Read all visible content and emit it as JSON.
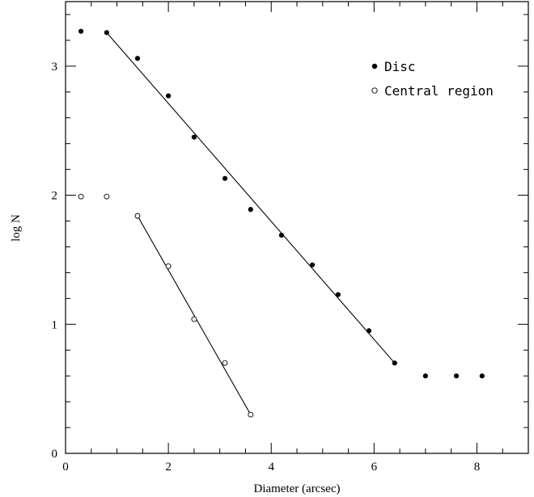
{
  "chart_data": {
    "type": "scatter",
    "xlabel": "Diameter (arcsec)",
    "ylabel": "log N",
    "xlim": [
      0,
      9
    ],
    "ylim": [
      0,
      3.5
    ],
    "grid": false,
    "legend_position": "top-right",
    "x_ticks": [
      0,
      2,
      4,
      6,
      8
    ],
    "y_ticks": [
      0,
      1,
      2,
      3
    ],
    "series": [
      {
        "name": "Disc",
        "marker": "filled-circle",
        "color": "#000000",
        "points": [
          {
            "x": 0.3,
            "y": 3.27
          },
          {
            "x": 0.8,
            "y": 3.26
          },
          {
            "x": 1.4,
            "y": 3.06
          },
          {
            "x": 2.0,
            "y": 2.77
          },
          {
            "x": 2.5,
            "y": 2.45
          },
          {
            "x": 3.1,
            "y": 2.13
          },
          {
            "x": 3.6,
            "y": 1.89
          },
          {
            "x": 4.2,
            "y": 1.69
          },
          {
            "x": 4.8,
            "y": 1.46
          },
          {
            "x": 5.3,
            "y": 1.23
          },
          {
            "x": 5.9,
            "y": 0.95
          },
          {
            "x": 6.4,
            "y": 0.7
          },
          {
            "x": 7.0,
            "y": 0.6
          },
          {
            "x": 7.6,
            "y": 0.6
          },
          {
            "x": 8.1,
            "y": 0.6
          }
        ],
        "fit_line": {
          "x": [
            0.8,
            6.4
          ],
          "y": [
            3.26,
            0.7
          ]
        }
      },
      {
        "name": "Central region",
        "marker": "open-circle",
        "color": "#000000",
        "points": [
          {
            "x": 0.3,
            "y": 1.99
          },
          {
            "x": 0.8,
            "y": 1.99
          },
          {
            "x": 1.4,
            "y": 1.84
          },
          {
            "x": 2.0,
            "y": 1.45
          },
          {
            "x": 2.5,
            "y": 1.04
          },
          {
            "x": 3.1,
            "y": 0.7
          },
          {
            "x": 3.6,
            "y": 0.3
          }
        ],
        "fit_line": {
          "x": [
            1.4,
            3.6
          ],
          "y": [
            1.84,
            0.3
          ]
        }
      }
    ]
  }
}
